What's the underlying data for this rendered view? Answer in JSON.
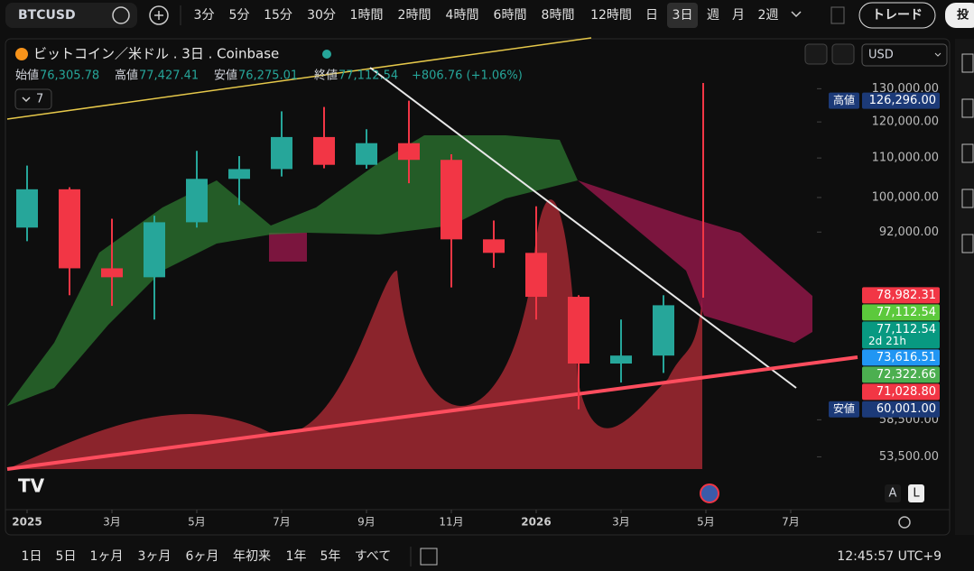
{
  "header": {
    "symbol": "BTCUSD",
    "intervals": [
      "3分",
      "5分",
      "15分",
      "30分",
      "1時間",
      "2時間",
      "4時間",
      "6時間",
      "8時間",
      "12時間",
      "日",
      "3日",
      "週",
      "月",
      "2週"
    ],
    "active_interval": "3日",
    "trade_button": "トレード",
    "cut_button": "投"
  },
  "legend": {
    "title": "ビットコイン／米ドル . 3日 . Coinbase",
    "open_label": "始値",
    "open": "76,305.78",
    "high_label": "高値",
    "high": "77,427.41",
    "low_label": "安値",
    "low": "76,275.01",
    "close_label": "終値",
    "close": "77,112.54",
    "change": "+806.76 (+1.06%)",
    "indicator_count": "7",
    "currency": "USD"
  },
  "chart_data": {
    "type": "candlestick",
    "log_scale": true,
    "grid": false,
    "x": [
      "2025-01",
      "2025-02",
      "2025-03",
      "2025-04",
      "2025-05",
      "2025-06",
      "2025-07",
      "2025-08",
      "2025-09",
      "2025-10",
      "2025-11",
      "2025-12",
      "2026-01",
      "2026-02",
      "2026-03",
      "2026-04"
    ],
    "open": [
      93000,
      102000,
      84300,
      82500,
      94200,
      104600,
      107100,
      115700,
      108200,
      114000,
      109500,
      90400,
      87500,
      78700,
      67000,
      68300
    ],
    "high": [
      108000,
      102500,
      95000,
      95700,
      111900,
      110500,
      123100,
      124400,
      117900,
      126296,
      111000,
      94600,
      97900,
      79000,
      74500,
      79000
    ],
    "low": [
      90000,
      79000,
      77000,
      74500,
      93000,
      98200,
      105200,
      107300,
      107200,
      103500,
      80500,
      84400,
      74500,
      60001,
      64000,
      65500
    ],
    "close": [
      102000,
      84300,
      82500,
      94200,
      104600,
      107100,
      115700,
      108200,
      114000,
      109500,
      90400,
      87500,
      78700,
      67000,
      68300,
      77112.54
    ],
    "up_color": "#26a69a",
    "down_color": "#f23645",
    "ylim": [
      47100,
      146000
    ],
    "yticks": [
      {
        "value": 130000,
        "label": "130,000.00"
      },
      {
        "value": 120000,
        "label": "120,000.00"
      },
      {
        "value": 110000,
        "label": "110,000.00"
      },
      {
        "value": 100000,
        "label": "100,000.00"
      },
      {
        "value": 92000,
        "label": "92,000.00"
      },
      {
        "value": 58500,
        "label": "58,500.00"
      },
      {
        "value": 53500,
        "label": "53,500.00"
      }
    ],
    "xticks": [
      {
        "value": "2025-01",
        "label": "2025"
      },
      {
        "value": "2025-03",
        "label": "3月"
      },
      {
        "value": "2025-05",
        "label": "5月"
      },
      {
        "value": "2025-07",
        "label": "7月"
      },
      {
        "value": "2025-09",
        "label": "9月"
      },
      {
        "value": "2025-11",
        "label": "11月"
      },
      {
        "value": "2026-01",
        "label": "2026"
      },
      {
        "value": "2026-03",
        "label": "3月"
      },
      {
        "value": "2026-05",
        "label": "5月"
      },
      {
        "value": "2026-07",
        "label": "7月"
      }
    ],
    "price_labels": [
      {
        "value": 126296,
        "label": "126,296.00",
        "tag": "高値",
        "color": "#1c3a78"
      },
      {
        "value": 78982.31,
        "label": "78,982.31",
        "color": "#f23645"
      },
      {
        "value": 77112.54,
        "label": "77,112.54",
        "color": "#5cc93c"
      },
      {
        "value": 77112.54,
        "label": "77,112.54",
        "note": "2d 21h",
        "color": "#089981"
      },
      {
        "value": 73616.51,
        "label": "73,616.51",
        "color": "#2196f3"
      },
      {
        "value": 72322.66,
        "label": "72,322.66",
        "color": "#4caf50"
      },
      {
        "value": 71028.8,
        "label": "71,028.80",
        "color": "#f23645"
      },
      {
        "value": 60001,
        "label": "60,001.00",
        "tag": "安値",
        "color": "#1c3a78"
      }
    ]
  },
  "footer": {
    "ranges": [
      "1日",
      "5日",
      "1ヶ月",
      "3ヶ月",
      "6ヶ月",
      "年初来",
      "1年",
      "5年",
      "すべて"
    ],
    "clock": "12:45:57 UTC+9",
    "auto": "A",
    "log": "L"
  }
}
